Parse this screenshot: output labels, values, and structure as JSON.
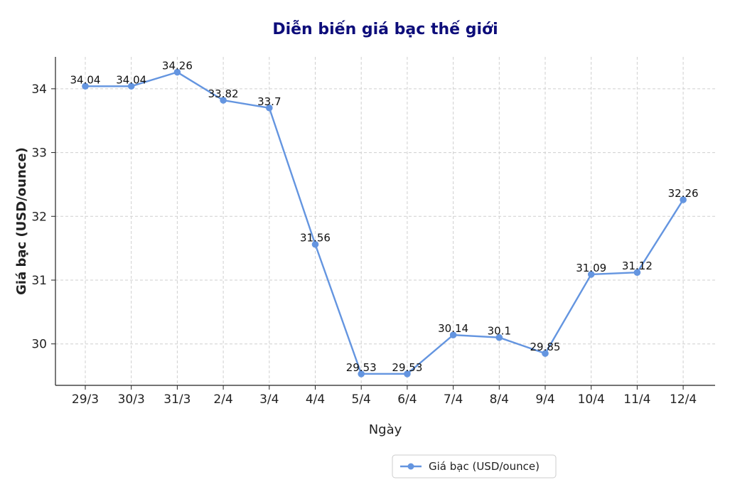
{
  "chart_data": {
    "type": "line",
    "title": "Diễn biến giá bạc thế giới",
    "xlabel": "Ngày",
    "ylabel": "Giá bạc (USD/ounce)",
    "categories": [
      "29/3",
      "30/3",
      "31/3",
      "2/4",
      "3/4",
      "4/4",
      "5/4",
      "6/4",
      "7/4",
      "8/4",
      "9/4",
      "10/4",
      "11/4",
      "12/4"
    ],
    "series": [
      {
        "name": "Giá bạc (USD/ounce)",
        "values": [
          34.04,
          34.04,
          34.26,
          33.82,
          33.7,
          31.56,
          29.53,
          29.53,
          30.14,
          30.1,
          29.85,
          31.09,
          31.12,
          32.26
        ],
        "labels": [
          "34.04",
          "34.04",
          "34.26",
          "33.82",
          "33.7",
          "31.56",
          "29.53",
          "29.53",
          "30.14",
          "30.1",
          "29.85",
          "31.09",
          "31.12",
          "32.26"
        ]
      }
    ],
    "ylim": [
      29.35,
      34.5
    ],
    "yticks": [
      30,
      31,
      32,
      33,
      34
    ],
    "grid": true,
    "legend_position": "bottom-right",
    "colors": {
      "line": "#6495e0",
      "title": "#0d0d7a"
    }
  }
}
